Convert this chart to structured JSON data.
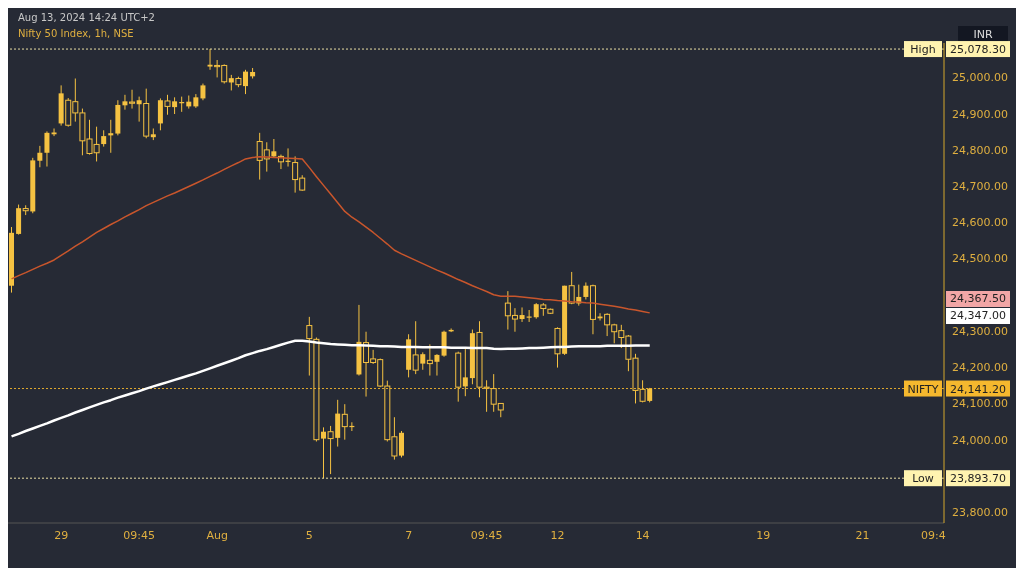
{
  "chart_data": {
    "type": "candlestick",
    "title": "Nifty 50 Index, 1h, NSE",
    "subtitle": "Aug 13, 2024 14:24 UTC+2",
    "ylabel": "INR",
    "color": "#f5c242",
    "categories": [
      null,
      null,
      null,
      null,
      null,
      null,
      null,
      "29",
      null,
      null,
      null,
      null,
      null,
      null,
      null,
      null,
      null,
      null,
      "09:45",
      null,
      null,
      null,
      null,
      null,
      null,
      null,
      null,
      null,
      null,
      "Aug",
      null,
      null,
      null,
      null,
      null,
      null,
      null,
      null,
      null,
      null,
      null,
      null,
      "5",
      null,
      null,
      null,
      null,
      null,
      null,
      null,
      null,
      null,
      null,
      null,
      null,
      null,
      "7",
      null,
      null,
      null,
      null,
      null,
      null,
      null,
      null,
      null,
      null,
      "09:45",
      null,
      null,
      null,
      null,
      null,
      null,
      null,
      null,
      null,
      "12",
      null,
      null,
      null,
      null,
      null,
      null,
      null,
      null,
      null,
      null,
      null,
      "14",
      null,
      null,
      null,
      null,
      null,
      null,
      null,
      null,
      null,
      null,
      null,
      null,
      null,
      null,
      null,
      null,
      "19",
      null,
      null,
      null,
      null,
      null,
      null,
      null,
      null,
      null,
      null,
      null,
      null,
      null,
      "21",
      null,
      null,
      null,
      null,
      null,
      null,
      null,
      null,
      null,
      "09:4",
      null
    ],
    "ohlc": [
      [
        24425,
        24587,
        24406,
        24571
      ],
      [
        24568,
        24649,
        24566,
        24639
      ],
      [
        24638,
        24647,
        24620,
        24632
      ],
      [
        24630,
        24778,
        24625,
        24771
      ],
      [
        24770,
        24811,
        24752,
        24792
      ],
      [
        24792,
        24851,
        24754,
        24847
      ],
      [
        24843,
        24859,
        24838,
        24848
      ],
      [
        24873,
        24978,
        24867,
        24956
      ],
      [
        24937,
        24943,
        24864,
        24868
      ],
      [
        24933,
        24997,
        24878,
        24902
      ],
      [
        24902,
        24914,
        24785,
        24825
      ],
      [
        24830,
        24883,
        24787,
        24790
      ],
      [
        24815,
        24864,
        24768,
        24792
      ],
      [
        24816,
        24854,
        24809,
        24838
      ],
      [
        24840,
        24883,
        24792,
        24846
      ],
      [
        24845,
        24937,
        24840,
        24924
      ],
      [
        24923,
        24952,
        24911,
        24934
      ],
      [
        24932,
        24966,
        24914,
        24930
      ],
      [
        24926,
        24947,
        24878,
        24937
      ],
      [
        24928,
        24969,
        24832,
        24838
      ],
      [
        24835,
        24859,
        24827,
        24843
      ],
      [
        24873,
        24942,
        24854,
        24937
      ],
      [
        24935,
        24952,
        24897,
        24920
      ],
      [
        24918,
        24945,
        24899,
        24934
      ],
      [
        24929,
        24947,
        24905,
        24932
      ],
      [
        24920,
        24950,
        24914,
        24933
      ],
      [
        24920,
        24954,
        24916,
        24945
      ],
      [
        24942,
        24983,
        24937,
        24978
      ],
      [
        25030,
        25078.3,
        25021,
        25035
      ],
      [
        25033,
        25048,
        25000,
        25030
      ],
      [
        25033,
        25036,
        24983,
        24988
      ],
      [
        24986,
        25007,
        24964,
        24998
      ],
      [
        24997,
        25002,
        24973,
        24980
      ],
      [
        24976,
        25021,
        24954,
        25016
      ],
      [
        25003,
        25026,
        24997,
        25015
      ],
      [
        24823,
        24847,
        24718,
        24771
      ],
      [
        24800,
        24821,
        24740,
        24775
      ],
      [
        24782,
        24830,
        24778,
        24796
      ],
      [
        24782,
        24787,
        24747,
        24767
      ],
      [
        24768,
        24804,
        24754,
        24770
      ],
      [
        24765,
        24782,
        24682,
        24718
      ],
      [
        24722,
        24730,
        24687,
        24689
      ],
      [
        24315,
        24339,
        24177,
        24279
      ],
      [
        24277,
        24282,
        23995,
        24000
      ],
      [
        24003,
        24034,
        23893.7,
        24022
      ],
      [
        24022,
        24038,
        23905,
        24003
      ],
      [
        24005,
        24110,
        23981,
        24072
      ],
      [
        24070,
        24098,
        24000,
        24036
      ],
      [
        24036,
        24048,
        24024,
        24038
      ],
      [
        24180,
        24372,
        24177,
        24270
      ],
      [
        24268,
        24298,
        24119,
        24213
      ],
      [
        24223,
        24248,
        24209,
        24213
      ],
      [
        24221,
        24224,
        24145,
        24148
      ],
      [
        24148,
        24163,
        23995,
        24000
      ],
      [
        24008,
        24062,
        23945,
        23955
      ],
      [
        23956,
        24024,
        23951,
        24019
      ],
      [
        24193,
        24291,
        24172,
        24277
      ],
      [
        24234,
        24327,
        24181,
        24192
      ],
      [
        24210,
        24241,
        24193,
        24236
      ],
      [
        24219,
        24263,
        24177,
        24210
      ],
      [
        24215,
        24236,
        24177,
        24234
      ],
      [
        24232,
        24301,
        24229,
        24298
      ],
      [
        24299,
        24307,
        24297,
        24303
      ],
      [
        24239,
        24243,
        24105,
        24145
      ],
      [
        24147,
        24250,
        24120,
        24172
      ],
      [
        24170,
        24304,
        24153,
        24294
      ],
      [
        24296,
        24327,
        24117,
        24145
      ],
      [
        24145,
        24164,
        24077,
        24142
      ],
      [
        24141,
        24181,
        24077,
        24098
      ],
      [
        24100,
        24101,
        24062,
        24082
      ],
      [
        24377,
        24410,
        24304,
        24342
      ],
      [
        24343,
        24363,
        24298,
        24333
      ],
      [
        24333,
        24365,
        24325,
        24344
      ],
      [
        24338,
        24358,
        24325,
        24340
      ],
      [
        24338,
        24377,
        24334,
        24374
      ],
      [
        24372,
        24377,
        24342,
        24362
      ],
      [
        24360,
        24362,
        24347,
        24349
      ],
      [
        24307,
        24310,
        24199,
        24237
      ],
      [
        24237,
        24425,
        24234,
        24425
      ],
      [
        24425,
        24463,
        24374,
        24377
      ],
      [
        24376,
        24428,
        24370,
        24394
      ],
      [
        24394,
        24434,
        24387,
        24425
      ],
      [
        24425,
        24428,
        24291,
        24332
      ],
      [
        24335,
        24349,
        24329,
        24340
      ],
      [
        24346,
        24349,
        24286,
        24317
      ],
      [
        24317,
        24320,
        24266,
        24298
      ],
      [
        24301,
        24317,
        24253,
        24282
      ],
      [
        24286,
        24289,
        24189,
        24222
      ],
      [
        24225,
        24237,
        24100,
        24136
      ],
      [
        24139,
        24164,
        24103,
        24106
      ],
      [
        24107,
        24143,
        24103,
        24141.2
      ],
      null,
      null,
      null,
      null,
      null,
      null,
      null,
      null,
      null,
      null,
      null,
      null,
      null,
      null,
      null,
      null,
      null,
      null,
      null,
      null,
      null,
      null,
      null,
      null,
      null,
      null,
      null,
      null,
      null,
      null,
      null,
      null,
      null,
      null,
      null,
      null,
      null,
      null,
      null,
      null,
      null
    ],
    "series": [
      {
        "type": "line",
        "color": "#c9562c",
        "values": [
          24444,
          24453,
          24461,
          24470,
          24479,
          24487,
          24496,
          24509,
          24521,
          24534,
          24546,
          24559,
          24572,
          24583,
          24594,
          24604,
          24615,
          24625,
          24635,
          24646,
          24655,
          24664,
          24673,
          24681,
          24690,
          24699,
          24708,
          24717,
          24727,
          24736,
          24746,
          24756,
          24765,
          24775,
          24779,
          24781,
          24780,
          24779,
          24778,
          24777,
          24776,
          24775,
          24751,
          24726,
          24702,
          24678,
          24654,
          24630,
          24614,
          24601,
          24587,
          24572,
          24556,
          24540,
          24523,
          24513,
          24504,
          24495,
          24486,
          24477,
          24468,
          24460,
          24451,
          24442,
          24434,
          24425,
          24417,
          24409,
          24400,
          24396,
          24396,
          24396,
          24394,
          24392,
          24390,
          24387,
          24386,
          24384,
          24383,
          24381,
          24380,
          24378,
          24377,
          24374,
          24371,
          24368,
          24365,
          24361,
          24358,
          24354,
          24350,
          null,
          null,
          null,
          null,
          null,
          null,
          null,
          null,
          null,
          null,
          null,
          null,
          null,
          null,
          null,
          null,
          null,
          null,
          null,
          null,
          null,
          null,
          null,
          null,
          null,
          null,
          null,
          null,
          null,
          null,
          null,
          null,
          null,
          null,
          null,
          null,
          null,
          null,
          null,
          null,
          null
        ]
      },
      {
        "type": "line",
        "color": "#ffffff",
        "values": [
          24009,
          24016,
          24024,
          24031,
          24038,
          24045,
          24053,
          24060,
          24067,
          24075,
          24082,
          24089,
          24096,
          24103,
          24109,
          24116,
          24122,
          24128,
          24134,
          24141,
          24147,
          24153,
          24159,
          24165,
          24171,
          24177,
          24183,
          24190,
          24197,
          24204,
          24211,
          24218,
          24225,
          24233,
          24239,
          24245,
          24250,
          24256,
          24262,
          24268,
          24273,
          24273,
          24271,
          24268,
          24266,
          24264,
          24263,
          24262,
          24261,
          24261,
          24260,
          24259,
          24258,
          24258,
          24257,
          24256,
          24256,
          24256,
          24255,
          24255,
          24255,
          24255,
          24254,
          24254,
          24254,
          24253,
          24253,
          24253,
          24251,
          24250,
          24251,
          24251,
          24252,
          24253,
          24253,
          24254,
          24255,
          24256,
          24256,
          24257,
          24258,
          24258,
          24258,
          24258,
          24259,
          24259,
          24259,
          24259,
          24260,
          24260,
          24260,
          null,
          null,
          null,
          null,
          null,
          null,
          null,
          null,
          null,
          null,
          null,
          null,
          null,
          null,
          null,
          null,
          null,
          null,
          null,
          null,
          null,
          null,
          null,
          null,
          null,
          null,
          null,
          null,
          null,
          null,
          null,
          null,
          null,
          null,
          null,
          null,
          null,
          null,
          null,
          null,
          null
        ]
      }
    ],
    "ylim": [
      23770,
      25095
    ],
    "yticks": [
      {
        "value": 23800,
        "label": "23,800.00"
      },
      {
        "value": 24000,
        "label": "24,000.00"
      },
      {
        "value": 24100,
        "label": "24,100.00"
      },
      {
        "value": 24200,
        "label": "24,200.00"
      },
      {
        "value": 24300,
        "label": "24,300.00"
      },
      {
        "value": 24500,
        "label": "24,500.00"
      },
      {
        "value": 24600,
        "label": "24,600.00"
      },
      {
        "value": 24700,
        "label": "24,700.00"
      },
      {
        "value": 24800,
        "label": "24,800.00"
      },
      {
        "value": 24900,
        "label": "24,900.00"
      },
      {
        "value": 25000,
        "label": "25,000.00"
      }
    ],
    "ref_lines": [
      {
        "axis": "y",
        "value": 25078.3,
        "label": "25,078.30",
        "color": "#fff3b0",
        "line_style": "dotted"
      },
      {
        "axis": "y",
        "value": 24141.2,
        "label": "24,141.20",
        "color": "#f5b82e",
        "line_style": "dotted"
      },
      {
        "axis": "y",
        "value": 23893.7,
        "label": "23,893.70",
        "color": "#fff3b0",
        "line_style": "dotted"
      }
    ],
    "annotations": [
      "High",
      "NIFTY",
      "Low",
      "24,367.50",
      "24,347.00"
    ]
  }
}
